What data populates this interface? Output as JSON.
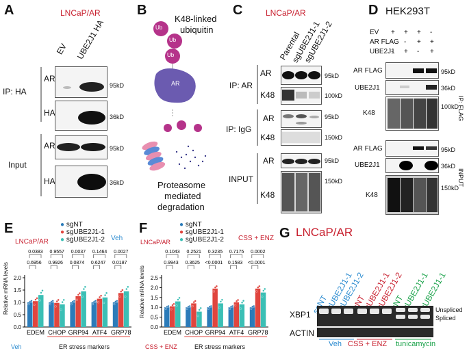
{
  "panels": {
    "A": {
      "letter": "A",
      "title": "LNCaP/AR",
      "lanes": [
        "EV",
        "UBE2J1 HA"
      ],
      "ip_label": "IP: HA",
      "input_label": "Input",
      "rows": [
        {
          "label": "AR",
          "kd": "95kD"
        },
        {
          "label": "HA",
          "kd": "36kD"
        },
        {
          "label": "AR",
          "kd": "95kD"
        },
        {
          "label": "HA",
          "kd": "36kD"
        }
      ]
    },
    "B": {
      "letter": "B",
      "ub": "Ub",
      "ar": "AR",
      "line1": "K48-linked",
      "line2": "ubiquitin",
      "caption1": "Proteasome",
      "caption2": "mediated",
      "caption3": "degradation"
    },
    "C": {
      "letter": "C",
      "title": "LNCaP/AR",
      "lanes": [
        "Parental",
        "sgUBE2J1-1",
        "sgUBE2J1-2"
      ],
      "ip_ar": "IP: AR",
      "ip_igg": "IP: IgG",
      "input": "INPUT",
      "rows": [
        {
          "label": "AR",
          "kd": "95kD"
        },
        {
          "label": "K48",
          "kd": "100kD"
        },
        {
          "label": "AR",
          "kd": "95kD"
        },
        {
          "label": "K48",
          "kd": "150kD"
        },
        {
          "label": "AR",
          "kd": "95kD"
        },
        {
          "label": "K48",
          "kd": "150kD"
        }
      ]
    },
    "D": {
      "letter": "D",
      "title": "HEK293T",
      "conditions": [
        {
          "label": "EV",
          "marks": [
            "+",
            "+",
            "+",
            "-"
          ]
        },
        {
          "label": "AR FLAG",
          "marks": [
            "-",
            "-",
            "+",
            "+"
          ]
        },
        {
          "label": "UBE2J1",
          "marks": [
            "-",
            "+",
            "-",
            "+"
          ]
        }
      ],
      "ip_label": "IP: FLAG",
      "input_label": "INPUT",
      "rows": [
        {
          "label": "AR FLAG",
          "kd": "95kD"
        },
        {
          "label": "UBE2J1",
          "kd": "36kD"
        },
        {
          "label": "K48",
          "kd": "100kD"
        },
        {
          "label": "AR FLAG",
          "kd": "95kD"
        },
        {
          "label": "UBE2J1",
          "kd": "36kD"
        },
        {
          "label": "K48",
          "kd": "150kD"
        }
      ]
    },
    "E": {
      "letter": "E",
      "title": "LNCaP/AR",
      "condition": "Veh",
      "condition_bottom": "Veh",
      "group_label": "ER stress markers"
    },
    "F": {
      "letter": "F",
      "title": "LNCaP/AR",
      "condition": "CSS + ENZ",
      "condition_bottom": "CSS + ENZ",
      "group_label": "ER stress markers"
    },
    "G": {
      "letter": "G",
      "title": "LNCaP/AR",
      "lanes": [
        "sgNT",
        "sgUBE2J1-1",
        "sgUBE2J1-2",
        "sgNT",
        "sgUBE2J1-1",
        "sgUBE2J1-2",
        "sgNT",
        "sgUBE2J1-1",
        "sgUBE2J1-1"
      ],
      "rows": [
        {
          "label": "XBP1"
        },
        {
          "label": "ACTIN"
        }
      ],
      "unspliced": "Unspliced",
      "spliced": "Spliced",
      "groups": [
        "Veh",
        "CSS + ENZ",
        "tunicamycin"
      ]
    }
  },
  "colors": {
    "sgNT": "#2b7bb9",
    "sgUBE2J1_1": "#e0453e",
    "sgUBE2J1_2": "#3bbfb5",
    "title_red": "#c8202f",
    "veh_blue": "#2b8bd0",
    "tunica_green": "#1aa24a",
    "ub_magenta": "#b5338a",
    "ar_purple": "#6b5bb0"
  },
  "chart_data": [
    {
      "type": "bar",
      "panel": "E",
      "categories": [
        "EDEM",
        "CHOP",
        "GRP94",
        "ATF4",
        "GRP78"
      ],
      "ylabel": "Relative mRNA levels",
      "ylim": [
        0,
        2
      ],
      "yticks": [
        0,
        0.5,
        1.0,
        1.5,
        2.0
      ],
      "series": [
        {
          "name": "sgNT",
          "values": [
            1.0,
            1.0,
            1.0,
            1.0,
            1.0
          ]
        },
        {
          "name": "sgUBE2J1-1",
          "values": [
            1.05,
            0.98,
            1.25,
            1.15,
            1.38
          ]
        },
        {
          "name": "sgUBE2J1-2",
          "values": [
            1.3,
            0.92,
            1.45,
            1.2,
            1.45
          ]
        }
      ],
      "pvalues_top": [
        "0.0383",
        "0.9557",
        "0.0037",
        "0.1464",
        "0.0027"
      ],
      "pvalues_bottom": [
        "0.6956",
        "0.9926",
        "0.0874",
        "0.6247",
        "0.0187"
      ]
    },
    {
      "type": "bar",
      "panel": "F",
      "categories": [
        "EDEM",
        "CHOP",
        "GRP94",
        "ATF4",
        "GRP78"
      ],
      "ylabel": "Relative mRNA levels",
      "ylim": [
        0,
        2.5
      ],
      "yticks": [
        0,
        0.5,
        1.0,
        1.5,
        2.0,
        2.5
      ],
      "series": [
        {
          "name": "sgNT",
          "values": [
            1.0,
            1.0,
            1.0,
            1.0,
            1.0
          ]
        },
        {
          "name": "sgUBE2J1-1",
          "values": [
            1.05,
            1.2,
            1.95,
            1.25,
            1.95
          ]
        },
        {
          "name": "sgUBE2J1-2",
          "values": [
            1.3,
            0.78,
            1.2,
            1.15,
            1.75
          ]
        }
      ],
      "pvalues_top": [
        "0.1043",
        "0.2521",
        "0.3235",
        "0.7175",
        "0.0002"
      ],
      "pvalues_bottom": [
        "0.9943",
        "0.3625",
        "<0.0001",
        "0.1583",
        "<0.0001"
      ]
    }
  ]
}
